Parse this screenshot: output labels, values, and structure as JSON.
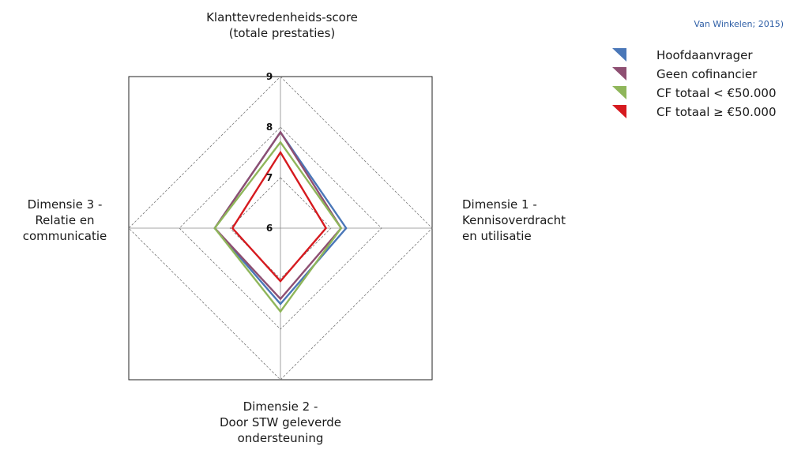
{
  "source_note": "Van Winkelen; 2015)",
  "chart_data": {
    "type": "radar",
    "axes": [
      {
        "label_lines": [
          "Klanttevredenheids-score",
          "(totale prestaties)"
        ]
      },
      {
        "label_lines": [
          "Dimensie 1 -",
          "Kennisoverdracht",
          "en utilisatie"
        ]
      },
      {
        "label_lines": [
          "Dimensie 2 -",
          "Door STW geleverde",
          "ondersteuning"
        ]
      },
      {
        "label_lines": [
          "Dimensie 3 -",
          "Relatie en",
          "communicatie"
        ]
      }
    ],
    "range": [
      6,
      9
    ],
    "ticks": [
      "6",
      "7",
      "8",
      "9"
    ],
    "grid": true,
    "legend_position": "top-right",
    "series": [
      {
        "name": "Hoofdaanvrager",
        "color": "#4a77b8",
        "values": [
          7.9,
          7.3,
          7.5,
          7.3
        ]
      },
      {
        "name": "Geen cofinancier",
        "color": "#8e4f72",
        "values": [
          7.9,
          7.2,
          7.4,
          7.3
        ]
      },
      {
        "name": "CF totaal < €50.000",
        "color": "#8fb65a",
        "values": [
          7.7,
          7.2,
          7.65,
          7.3
        ]
      },
      {
        "name": "CF totaal ≥ €50.000",
        "color": "#d61a1f",
        "values": [
          7.5,
          6.9,
          7.05,
          6.95
        ]
      }
    ]
  }
}
